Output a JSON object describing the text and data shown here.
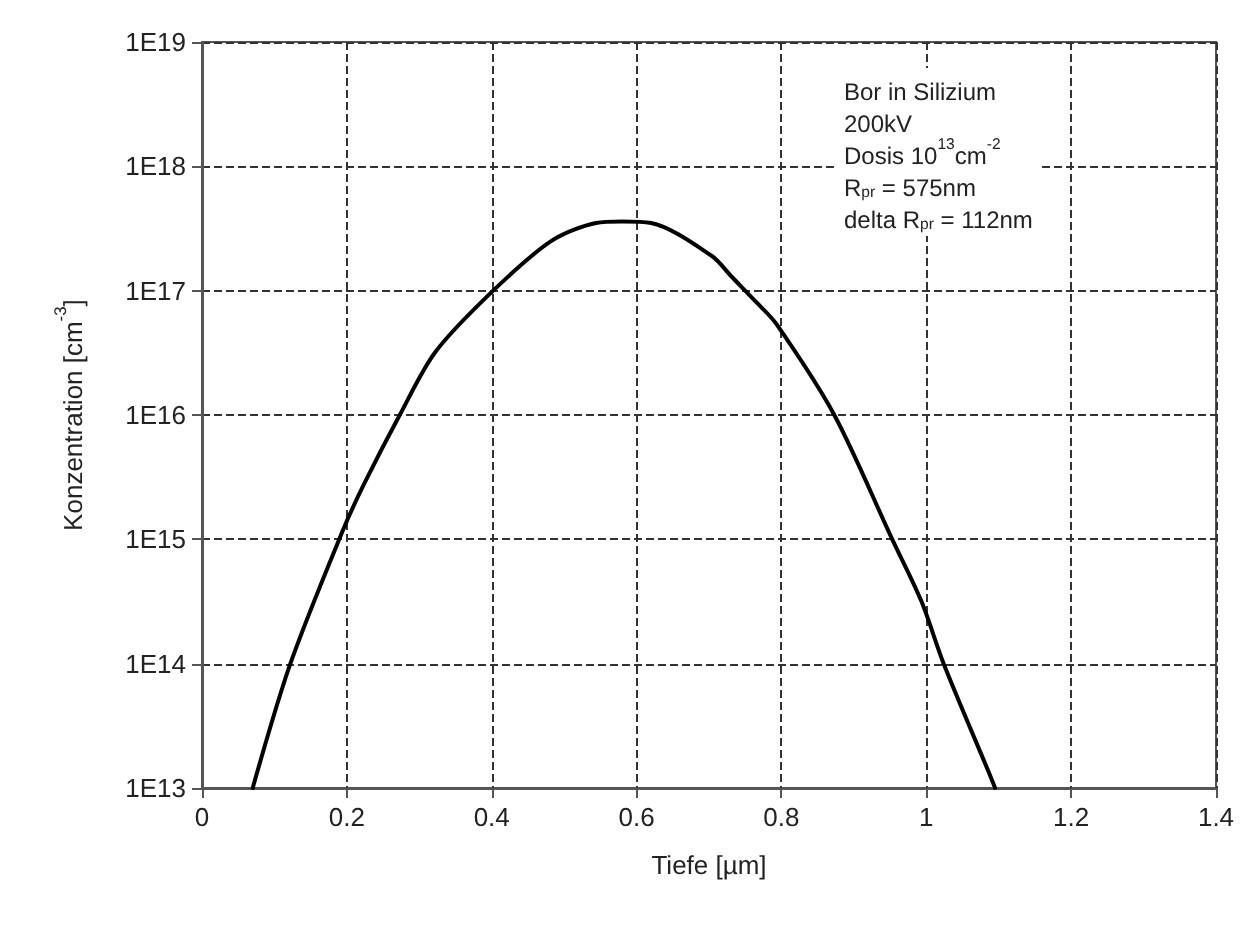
{
  "chart_data": {
    "type": "line",
    "xlabel": "Tiefe [µm]",
    "ylabel": "Konzentration [cm$^{-3}$]",
    "x": [
      0.07,
      0.122,
      0.195,
      0.224,
      0.273,
      0.322,
      0.402,
      0.482,
      0.544,
      0.58,
      0.62,
      0.704,
      0.731,
      0.766,
      0.793,
      0.873,
      0.953,
      0.993,
      1.024,
      1.086,
      1.095
    ],
    "series": [
      {
        "color": "#000000",
        "values": [
          10000000000000.0,
          100000000000000.0,
          1200000000000000.0,
          2800000000000000.0,
          1e+16,
          3.2e+16,
          1e+17,
          2.5e+17,
          3.5e+17,
          3.6e+17,
          3.5e+17,
          1.9e+17,
          1.3e+17,
          8e+16,
          5.4e+16,
          1e+16,
          1000000000000000.0,
          320000000000000.0,
          100000000000000.0,
          13500000000000.0,
          10000000000000.0
        ]
      }
    ],
    "xlim": [
      0,
      1.4
    ],
    "xticks": [
      0,
      0.2,
      0.4,
      0.6,
      0.8,
      1.0,
      1.2,
      1.4
    ],
    "ylim": [
      10000000000000.0,
      1e+19
    ],
    "yticks": [
      {
        "value": 10000000000000.0,
        "label": "1E13"
      },
      {
        "value": 100000000000000.0,
        "label": "1E14"
      },
      {
        "value": 1000000000000000.0,
        "label": "1E15"
      },
      {
        "value": 1e+16,
        "label": "1E16"
      },
      {
        "value": 1e+17,
        "label": "1E17"
      },
      {
        "value": 1e+18,
        "label": "1E18"
      },
      {
        "value": 1e+19,
        "label": "1E19"
      }
    ],
    "log": "y",
    "grid": true,
    "marker": "none",
    "line_style": "solid",
    "annotations": [
      "Bor in Silizium",
      "200kV",
      "Dosis 10$^{13}$cm$^{-2}$",
      "R$_{pr}$ = 575nm",
      "delta R$_{pr}$ = 112nm"
    ]
  }
}
